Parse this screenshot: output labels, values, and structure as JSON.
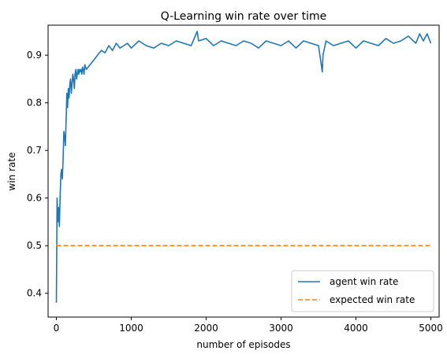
{
  "chart_data": {
    "type": "line",
    "title": "Q-Learning win rate over time",
    "xlabel": "number of episodes",
    "ylabel": "win rate",
    "xlim": [
      -110,
      5110
    ],
    "ylim": [
      0.35,
      0.963
    ],
    "xticks": [
      0,
      1000,
      2000,
      3000,
      4000,
      5000
    ],
    "yticks": [
      0.4,
      0.5,
      0.6,
      0.7,
      0.8,
      0.9
    ],
    "ytick_labels": [
      "0.4",
      "0.5",
      "0.6",
      "0.7",
      "0.8",
      "0.9"
    ],
    "grid": false,
    "legend_position": "lower-right",
    "series": [
      {
        "name": "agent win rate",
        "color": "#1f77b4",
        "style": "solid",
        "x": [
          0,
          10,
          20,
          30,
          40,
          50,
          60,
          70,
          80,
          90,
          100,
          110,
          120,
          130,
          140,
          150,
          160,
          170,
          180,
          190,
          200,
          210,
          220,
          230,
          240,
          250,
          260,
          270,
          280,
          290,
          300,
          310,
          320,
          330,
          340,
          350,
          360,
          370,
          380,
          390,
          400,
          450,
          500,
          550,
          600,
          650,
          700,
          750,
          800,
          850,
          900,
          950,
          1000,
          1100,
          1200,
          1300,
          1400,
          1500,
          1600,
          1700,
          1800,
          1880,
          1900,
          2000,
          2100,
          2200,
          2300,
          2400,
          2500,
          2600,
          2700,
          2800,
          2900,
          3000,
          3100,
          3200,
          3300,
          3400,
          3500,
          3550,
          3560,
          3600,
          3700,
          3800,
          3900,
          4000,
          4100,
          4200,
          4300,
          4400,
          4500,
          4600,
          4700,
          4800,
          4850,
          4900,
          4950,
          5000
        ],
        "y": [
          0.38,
          0.6,
          0.55,
          0.58,
          0.54,
          0.6,
          0.65,
          0.66,
          0.64,
          0.68,
          0.74,
          0.73,
          0.71,
          0.76,
          0.82,
          0.79,
          0.83,
          0.81,
          0.84,
          0.85,
          0.82,
          0.84,
          0.86,
          0.85,
          0.83,
          0.86,
          0.87,
          0.85,
          0.86,
          0.87,
          0.86,
          0.87,
          0.865,
          0.87,
          0.86,
          0.875,
          0.87,
          0.86,
          0.88,
          0.875,
          0.87,
          0.88,
          0.89,
          0.9,
          0.91,
          0.905,
          0.92,
          0.91,
          0.925,
          0.915,
          0.92,
          0.925,
          0.915,
          0.93,
          0.92,
          0.915,
          0.925,
          0.92,
          0.93,
          0.925,
          0.92,
          0.95,
          0.93,
          0.935,
          0.92,
          0.93,
          0.925,
          0.92,
          0.93,
          0.925,
          0.915,
          0.93,
          0.925,
          0.92,
          0.93,
          0.915,
          0.93,
          0.925,
          0.92,
          0.865,
          0.9,
          0.93,
          0.92,
          0.925,
          0.93,
          0.915,
          0.93,
          0.925,
          0.92,
          0.935,
          0.925,
          0.93,
          0.94,
          0.925,
          0.945,
          0.93,
          0.945,
          0.925
        ]
      },
      {
        "name": "expected win rate",
        "color": "#ff7f0e",
        "style": "dashed",
        "x": [
          0,
          5000
        ],
        "y": [
          0.5,
          0.5
        ]
      }
    ]
  }
}
